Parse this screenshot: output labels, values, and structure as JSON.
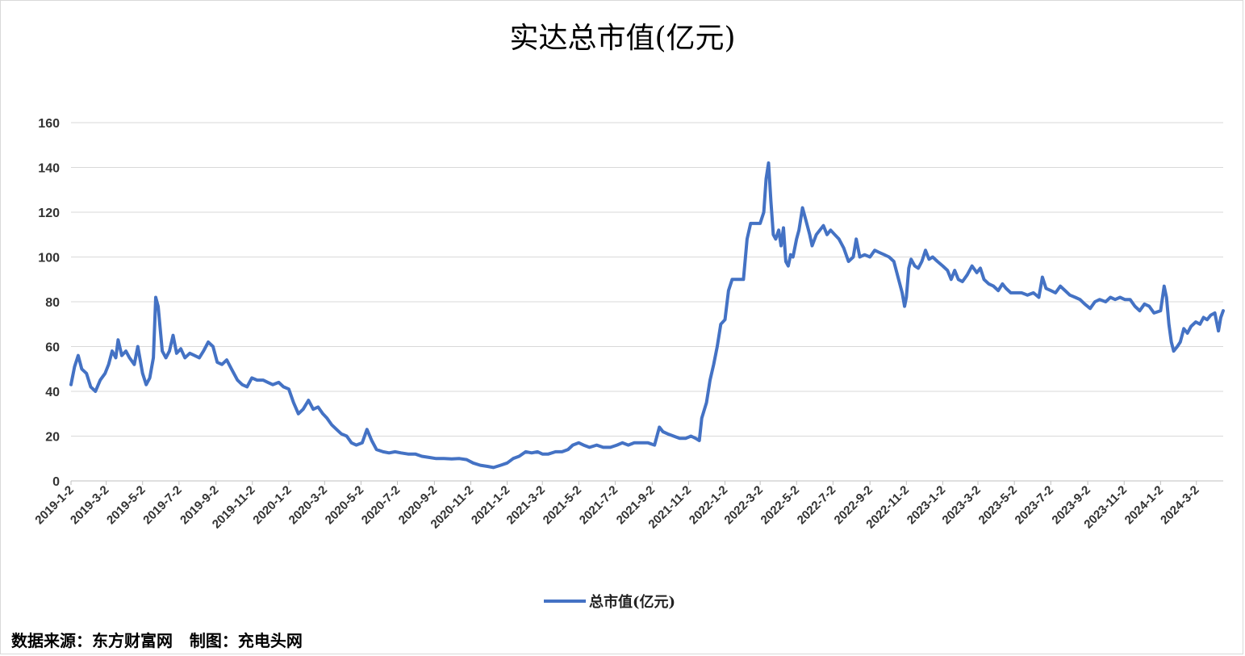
{
  "chart_data": {
    "type": "line",
    "title": "实达总市值(亿元)",
    "xlabel": "",
    "ylabel": "",
    "ylim": [
      0,
      160
    ],
    "yticks": [
      0,
      20,
      40,
      60,
      80,
      100,
      120,
      140,
      160
    ],
    "xtick_labels": [
      "2019-1-2",
      "2019-3-2",
      "2019-5-2",
      "2019-7-2",
      "2019-9-2",
      "2019-11-2",
      "2020-1-2",
      "2020-3-2",
      "2020-5-2",
      "2020-7-2",
      "2020-9-2",
      "2020-11-2",
      "2021-1-2",
      "2021-3-2",
      "2021-5-2",
      "2021-7-2",
      "2021-9-2",
      "2021-11-2",
      "2022-1-2",
      "2022-3-2",
      "2022-5-2",
      "2022-7-2",
      "2022-9-2",
      "2022-11-2",
      "2023-1-2",
      "2023-3-2",
      "2023-5-2",
      "2023-7-2",
      "2023-9-2",
      "2023-11-2",
      "2024-1-2",
      "2024-3-2"
    ],
    "grid": true,
    "legend_position": "bottom",
    "series": [
      {
        "name": "总市值(亿元)",
        "color": "#4472C4",
        "points": [
          [
            "2019-01-02",
            43
          ],
          [
            "2019-01-08",
            51
          ],
          [
            "2019-01-14",
            56
          ],
          [
            "2019-01-20",
            50
          ],
          [
            "2019-01-28",
            48
          ],
          [
            "2019-02-04",
            42
          ],
          [
            "2019-02-12",
            40
          ],
          [
            "2019-02-20",
            45
          ],
          [
            "2019-02-28",
            48
          ],
          [
            "2019-03-06",
            52
          ],
          [
            "2019-03-12",
            58
          ],
          [
            "2019-03-18",
            55
          ],
          [
            "2019-03-22",
            63
          ],
          [
            "2019-03-28",
            56
          ],
          [
            "2019-04-04",
            58
          ],
          [
            "2019-04-10",
            55
          ],
          [
            "2019-04-18",
            52
          ],
          [
            "2019-04-24",
            60
          ],
          [
            "2019-05-02",
            48
          ],
          [
            "2019-05-08",
            43
          ],
          [
            "2019-05-14",
            46
          ],
          [
            "2019-05-20",
            55
          ],
          [
            "2019-05-24",
            82
          ],
          [
            "2019-05-28",
            78
          ],
          [
            "2019-06-04",
            58
          ],
          [
            "2019-06-10",
            55
          ],
          [
            "2019-06-16",
            58
          ],
          [
            "2019-06-22",
            65
          ],
          [
            "2019-06-28",
            57
          ],
          [
            "2019-07-05",
            59
          ],
          [
            "2019-07-12",
            55
          ],
          [
            "2019-07-20",
            57
          ],
          [
            "2019-07-28",
            56
          ],
          [
            "2019-08-05",
            55
          ],
          [
            "2019-08-12",
            58
          ],
          [
            "2019-08-20",
            62
          ],
          [
            "2019-08-28",
            60
          ],
          [
            "2019-09-04",
            53
          ],
          [
            "2019-09-12",
            52
          ],
          [
            "2019-09-20",
            54
          ],
          [
            "2019-09-28",
            50
          ],
          [
            "2019-10-08",
            45
          ],
          [
            "2019-10-16",
            43
          ],
          [
            "2019-10-24",
            42
          ],
          [
            "2019-11-01",
            46
          ],
          [
            "2019-11-10",
            45
          ],
          [
            "2019-11-20",
            45
          ],
          [
            "2019-11-28",
            44
          ],
          [
            "2019-12-06",
            43
          ],
          [
            "2019-12-16",
            44
          ],
          [
            "2019-12-24",
            42
          ],
          [
            "2020-01-02",
            41
          ],
          [
            "2020-01-10",
            35
          ],
          [
            "2020-01-18",
            30
          ],
          [
            "2020-01-26",
            32
          ],
          [
            "2020-02-04",
            36
          ],
          [
            "2020-02-12",
            32
          ],
          [
            "2020-02-20",
            33
          ],
          [
            "2020-02-28",
            30
          ],
          [
            "2020-03-06",
            28
          ],
          [
            "2020-03-14",
            25
          ],
          [
            "2020-03-22",
            23
          ],
          [
            "2020-03-30",
            21
          ],
          [
            "2020-04-08",
            20
          ],
          [
            "2020-04-16",
            17
          ],
          [
            "2020-04-24",
            16
          ],
          [
            "2020-05-04",
            17
          ],
          [
            "2020-05-12",
            23
          ],
          [
            "2020-05-20",
            18
          ],
          [
            "2020-05-28",
            14
          ],
          [
            "2020-06-08",
            13
          ],
          [
            "2020-06-18",
            12.5
          ],
          [
            "2020-06-28",
            13
          ],
          [
            "2020-07-08",
            12.5
          ],
          [
            "2020-07-20",
            12
          ],
          [
            "2020-08-01",
            12
          ],
          [
            "2020-08-12",
            11
          ],
          [
            "2020-08-24",
            10.5
          ],
          [
            "2020-09-05",
            10
          ],
          [
            "2020-09-18",
            10
          ],
          [
            "2020-10-01",
            9.8
          ],
          [
            "2020-10-14",
            10
          ],
          [
            "2020-10-26",
            9.5
          ],
          [
            "2020-11-06",
            8
          ],
          [
            "2020-11-18",
            7
          ],
          [
            "2020-11-30",
            6.5
          ],
          [
            "2020-12-10",
            6
          ],
          [
            "2020-12-22",
            7
          ],
          [
            "2021-01-02",
            8
          ],
          [
            "2021-01-12",
            10
          ],
          [
            "2021-01-22",
            11
          ],
          [
            "2021-02-02",
            13
          ],
          [
            "2021-02-12",
            12.5
          ],
          [
            "2021-02-22",
            13
          ],
          [
            "2021-03-02",
            12
          ],
          [
            "2021-03-12",
            12
          ],
          [
            "2021-03-24",
            13
          ],
          [
            "2021-04-04",
            13
          ],
          [
            "2021-04-14",
            14
          ],
          [
            "2021-04-22",
            16
          ],
          [
            "2021-05-02",
            17
          ],
          [
            "2021-05-10",
            16
          ],
          [
            "2021-05-20",
            15
          ],
          [
            "2021-06-01",
            16
          ],
          [
            "2021-06-12",
            15
          ],
          [
            "2021-06-24",
            15
          ],
          [
            "2021-07-05",
            16
          ],
          [
            "2021-07-14",
            17
          ],
          [
            "2021-07-24",
            16
          ],
          [
            "2021-08-03",
            17
          ],
          [
            "2021-08-14",
            17
          ],
          [
            "2021-08-26",
            17
          ],
          [
            "2021-09-06",
            16
          ],
          [
            "2021-09-14",
            24
          ],
          [
            "2021-09-20",
            22
          ],
          [
            "2021-09-28",
            21
          ],
          [
            "2021-10-08",
            20
          ],
          [
            "2021-10-18",
            19
          ],
          [
            "2021-10-28",
            19
          ],
          [
            "2021-11-06",
            20
          ],
          [
            "2021-11-14",
            19
          ],
          [
            "2021-11-20",
            18
          ],
          [
            "2021-11-24",
            28
          ],
          [
            "2021-12-02",
            35
          ],
          [
            "2021-12-08",
            45
          ],
          [
            "2021-12-14",
            52
          ],
          [
            "2021-12-20",
            60
          ],
          [
            "2021-12-26",
            70
          ],
          [
            "2022-01-02",
            72
          ],
          [
            "2022-01-08",
            85
          ],
          [
            "2022-01-14",
            90
          ],
          [
            "2022-01-22",
            90
          ],
          [
            "2022-02-02",
            90
          ],
          [
            "2022-02-08",
            108
          ],
          [
            "2022-02-14",
            115
          ],
          [
            "2022-02-22",
            115
          ],
          [
            "2022-03-02",
            115
          ],
          [
            "2022-03-08",
            120
          ],
          [
            "2022-03-12",
            135
          ],
          [
            "2022-03-16",
            142
          ],
          [
            "2022-03-20",
            125
          ],
          [
            "2022-03-24",
            110
          ],
          [
            "2022-03-28",
            108
          ],
          [
            "2022-04-02",
            112
          ],
          [
            "2022-04-06",
            105
          ],
          [
            "2022-04-10",
            113
          ],
          [
            "2022-04-14",
            98
          ],
          [
            "2022-04-18",
            96
          ],
          [
            "2022-04-22",
            101
          ],
          [
            "2022-04-26",
            100
          ],
          [
            "2022-05-02",
            108
          ],
          [
            "2022-05-06",
            112
          ],
          [
            "2022-05-12",
            122
          ],
          [
            "2022-05-18",
            116
          ],
          [
            "2022-05-24",
            110
          ],
          [
            "2022-05-28",
            105
          ],
          [
            "2022-06-04",
            110
          ],
          [
            "2022-06-10",
            112
          ],
          [
            "2022-06-16",
            114
          ],
          [
            "2022-06-22",
            110
          ],
          [
            "2022-06-28",
            112
          ],
          [
            "2022-07-05",
            110
          ],
          [
            "2022-07-12",
            108
          ],
          [
            "2022-07-20",
            104
          ],
          [
            "2022-07-28",
            98
          ],
          [
            "2022-08-05",
            100
          ],
          [
            "2022-08-10",
            108
          ],
          [
            "2022-08-16",
            100
          ],
          [
            "2022-08-24",
            101
          ],
          [
            "2022-09-02",
            100
          ],
          [
            "2022-09-10",
            103
          ],
          [
            "2022-09-18",
            102
          ],
          [
            "2022-09-26",
            101
          ],
          [
            "2022-10-04",
            100
          ],
          [
            "2022-10-12",
            98
          ],
          [
            "2022-10-20",
            90
          ],
          [
            "2022-10-26",
            84
          ],
          [
            "2022-10-30",
            78
          ],
          [
            "2022-11-02",
            82
          ],
          [
            "2022-11-06",
            95
          ],
          [
            "2022-11-10",
            99
          ],
          [
            "2022-11-16",
            96
          ],
          [
            "2022-11-22",
            95
          ],
          [
            "2022-11-28",
            98
          ],
          [
            "2022-12-04",
            103
          ],
          [
            "2022-12-10",
            99
          ],
          [
            "2022-12-16",
            100
          ],
          [
            "2022-12-24",
            98
          ],
          [
            "2023-01-02",
            96
          ],
          [
            "2023-01-10",
            94
          ],
          [
            "2023-01-16",
            90
          ],
          [
            "2023-01-22",
            94
          ],
          [
            "2023-01-28",
            90
          ],
          [
            "2023-02-04",
            89
          ],
          [
            "2023-02-12",
            92
          ],
          [
            "2023-02-20",
            96
          ],
          [
            "2023-02-28",
            93
          ],
          [
            "2023-03-06",
            95
          ],
          [
            "2023-03-12",
            90
          ],
          [
            "2023-03-20",
            88
          ],
          [
            "2023-03-28",
            87
          ],
          [
            "2023-04-05",
            85
          ],
          [
            "2023-04-12",
            88
          ],
          [
            "2023-04-18",
            86
          ],
          [
            "2023-04-26",
            84
          ],
          [
            "2023-05-04",
            84
          ],
          [
            "2023-05-14",
            84
          ],
          [
            "2023-05-24",
            83
          ],
          [
            "2023-06-03",
            84
          ],
          [
            "2023-06-12",
            82
          ],
          [
            "2023-06-18",
            91
          ],
          [
            "2023-06-24",
            86
          ],
          [
            "2023-07-02",
            85
          ],
          [
            "2023-07-10",
            84
          ],
          [
            "2023-07-18",
            87
          ],
          [
            "2023-07-26",
            85
          ],
          [
            "2023-08-03",
            83
          ],
          [
            "2023-08-12",
            82
          ],
          [
            "2023-08-20",
            81
          ],
          [
            "2023-08-28",
            79
          ],
          [
            "2023-09-06",
            77
          ],
          [
            "2023-09-14",
            80
          ],
          [
            "2023-09-22",
            81
          ],
          [
            "2023-10-02",
            80
          ],
          [
            "2023-10-10",
            82
          ],
          [
            "2023-10-18",
            81
          ],
          [
            "2023-10-26",
            82
          ],
          [
            "2023-11-03",
            81
          ],
          [
            "2023-11-12",
            81
          ],
          [
            "2023-11-20",
            78
          ],
          [
            "2023-11-28",
            76
          ],
          [
            "2023-12-06",
            79
          ],
          [
            "2023-12-14",
            78
          ],
          [
            "2023-12-22",
            75
          ],
          [
            "2024-01-02",
            76
          ],
          [
            "2024-01-08",
            87
          ],
          [
            "2024-01-12",
            82
          ],
          [
            "2024-01-16",
            70
          ],
          [
            "2024-01-20",
            62
          ],
          [
            "2024-01-24",
            58
          ],
          [
            "2024-01-30",
            60
          ],
          [
            "2024-02-04",
            62
          ],
          [
            "2024-02-10",
            68
          ],
          [
            "2024-02-16",
            66
          ],
          [
            "2024-02-22",
            69
          ],
          [
            "2024-03-01",
            71
          ],
          [
            "2024-03-08",
            70
          ],
          [
            "2024-03-14",
            73
          ],
          [
            "2024-03-20",
            72
          ],
          [
            "2024-03-26",
            74
          ],
          [
            "2024-04-02",
            75
          ],
          [
            "2024-04-08",
            67
          ],
          [
            "2024-04-12",
            73
          ],
          [
            "2024-04-16",
            76
          ]
        ]
      }
    ]
  },
  "legend": {
    "label": "总市值(亿元)"
  },
  "footer": {
    "source": "数据来源：东方财富网   制图：充电头网"
  }
}
